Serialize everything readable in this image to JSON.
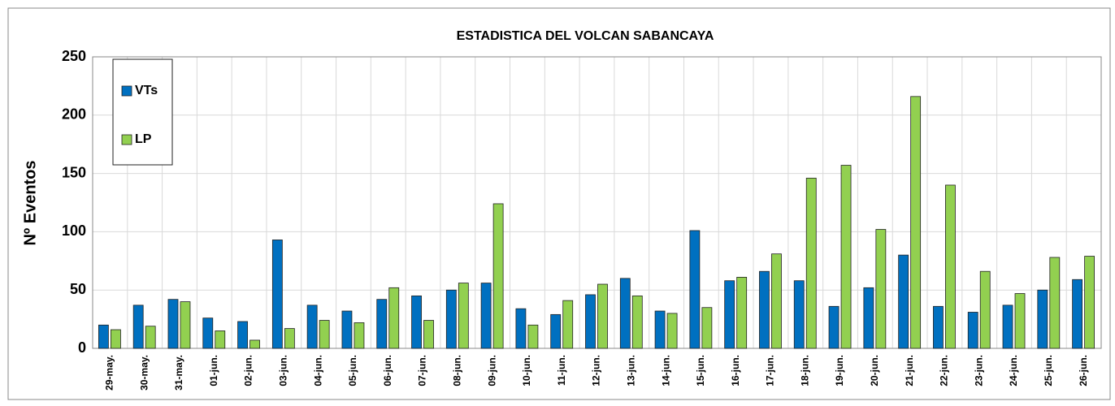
{
  "chart_data": {
    "type": "bar",
    "title": "ESTADISTICA DEL VOLCAN SABANCAYA",
    "y_label": "Nº Eventos",
    "categories": [
      "29-may.",
      "30-may.",
      "31-may.",
      "01-jun.",
      "02-jun.",
      "03-jun.",
      "04-jun.",
      "05-jun.",
      "06-jun.",
      "07-jun.",
      "08-jun.",
      "09-jun.",
      "10-jun.",
      "11-jun.",
      "12-jun.",
      "13-jun.",
      "14-jun.",
      "15-jun.",
      "16-jun.",
      "17-jun.",
      "18-jun.",
      "19-jun.",
      "20-jun.",
      "21-jun.",
      "22-jun.",
      "23-jun.",
      "24-jun.",
      "25-jun.",
      "26-jun."
    ],
    "series": [
      {
        "name": "VTs",
        "color": "#0070c0",
        "values": [
          20,
          37,
          42,
          26,
          23,
          93,
          37,
          32,
          42,
          45,
          50,
          56,
          34,
          29,
          46,
          60,
          32,
          101,
          58,
          66,
          58,
          36,
          52,
          80,
          36,
          31,
          37,
          50,
          59
        ]
      },
      {
        "name": "LP",
        "color": "#92d050",
        "values": [
          16,
          19,
          40,
          15,
          7,
          17,
          24,
          22,
          52,
          24,
          56,
          124,
          20,
          41,
          55,
          45,
          30,
          35,
          61,
          81,
          146,
          157,
          102,
          216,
          140,
          66,
          47,
          78,
          79
        ]
      }
    ],
    "ylim": [
      0,
      250
    ],
    "yticks": [
      0,
      50,
      100,
      150,
      200,
      250
    ],
    "grid": true,
    "legend": "top-left"
  }
}
